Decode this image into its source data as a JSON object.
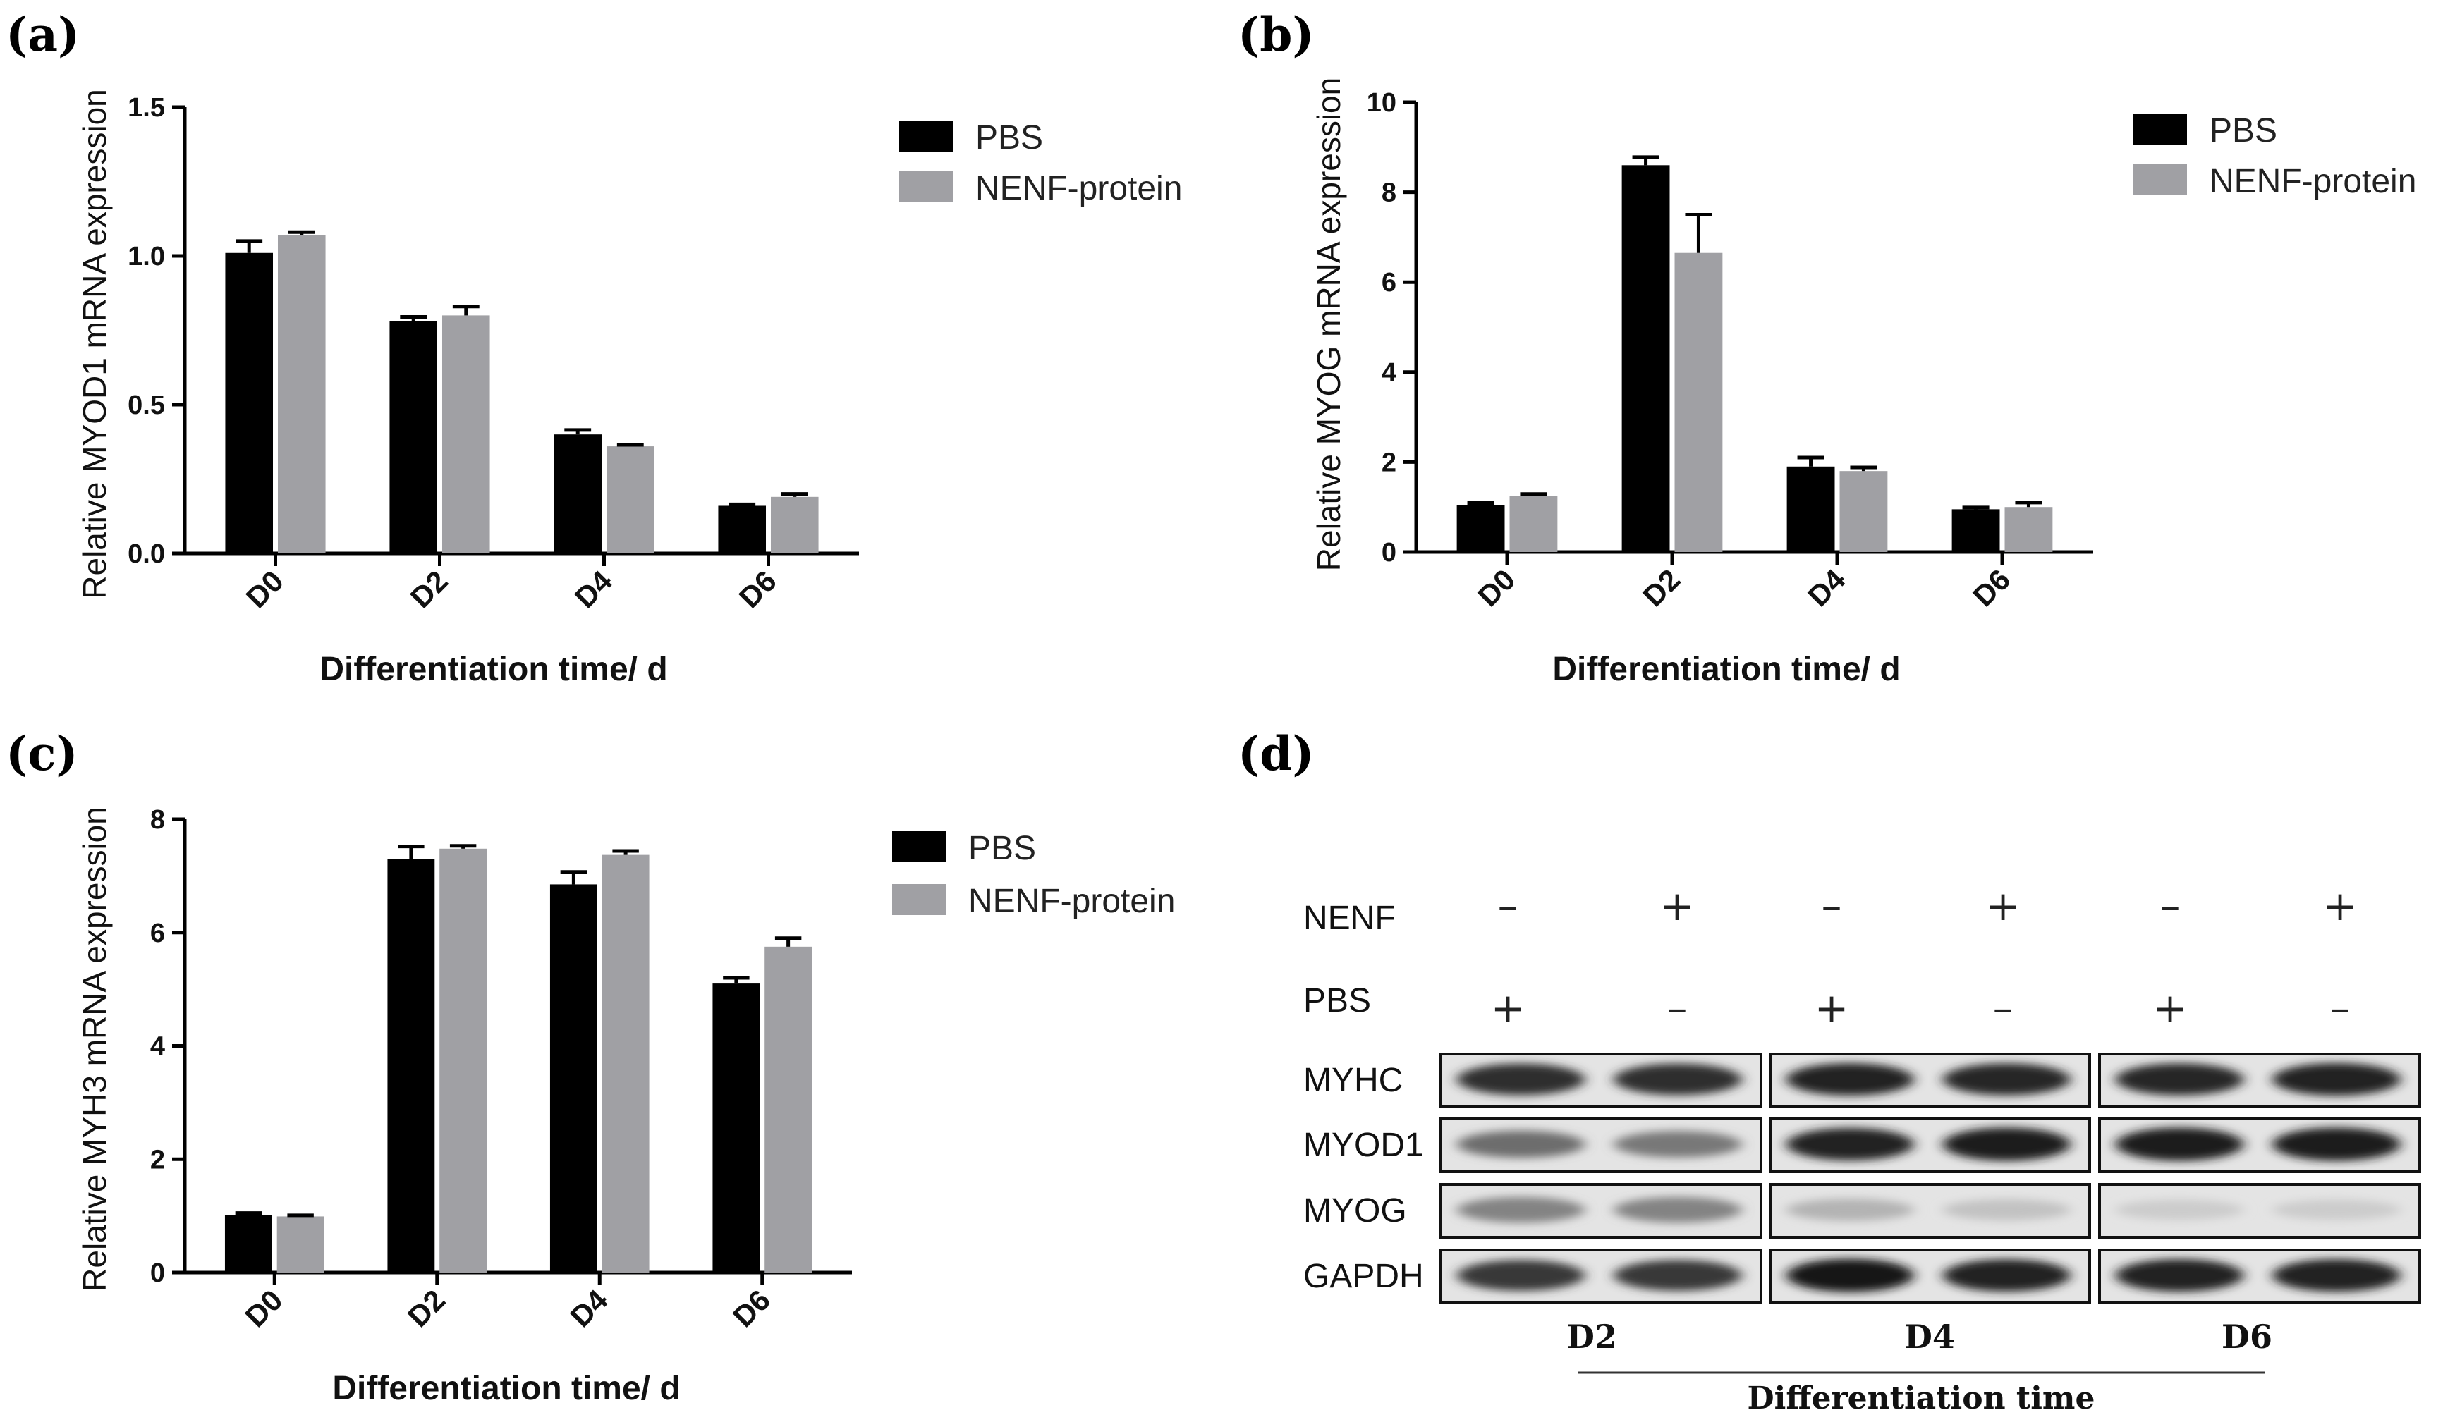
{
  "chart_data": [
    {
      "id": "a",
      "panel_label": "(a)",
      "type": "bar",
      "title": "",
      "ylabel": "Relative MYOD1 mRNA expression",
      "xlabel": "Differentiation time/ d",
      "categories": [
        "D0",
        "D2",
        "D4",
        "D6"
      ],
      "ylim": [
        0,
        1.5
      ],
      "yticks": [
        0.0,
        0.5,
        1.0,
        1.5
      ],
      "ytick_labels": [
        "0.0",
        "0.5",
        "1.0",
        "1.5"
      ],
      "legend": "top-right",
      "series": [
        {
          "name": "PBS",
          "color": "#000000",
          "values": [
            1.01,
            0.78,
            0.4,
            0.16
          ],
          "errors": [
            0.04,
            0.015,
            0.015,
            0.005
          ]
        },
        {
          "name": "NENF-protein",
          "color": "#a0a0a4",
          "values": [
            1.07,
            0.8,
            0.36,
            0.19
          ],
          "errors": [
            0.01,
            0.03,
            0.005,
            0.01
          ]
        }
      ]
    },
    {
      "id": "b",
      "panel_label": "(b)",
      "type": "bar",
      "title": "",
      "ylabel": "Relative MYOG mRNA expression",
      "xlabel": "Differentiation time/ d",
      "categories": [
        "D0",
        "D2",
        "D4",
        "D6"
      ],
      "ylim": [
        0,
        10
      ],
      "yticks": [
        0,
        2,
        4,
        6,
        8,
        10
      ],
      "ytick_labels": [
        "0",
        "2",
        "4",
        "6",
        "8",
        "10"
      ],
      "legend": "top-right",
      "series": [
        {
          "name": "PBS",
          "color": "#000000",
          "values": [
            1.05,
            8.6,
            1.9,
            0.95
          ],
          "errors": [
            0.04,
            0.18,
            0.2,
            0.04
          ]
        },
        {
          "name": "NENF-protein",
          "color": "#a0a0a4",
          "values": [
            1.25,
            6.65,
            1.8,
            1.0
          ],
          "errors": [
            0.04,
            0.85,
            0.08,
            0.1
          ]
        }
      ]
    },
    {
      "id": "c",
      "panel_label": "(c)",
      "type": "bar",
      "title": "",
      "ylabel": "Relative MYH3 mRNA expression",
      "xlabel": "Differentiation time/ d",
      "categories": [
        "D0",
        "D2",
        "D4",
        "D6"
      ],
      "ylim": [
        0,
        8
      ],
      "yticks": [
        0,
        2,
        4,
        6,
        8
      ],
      "ytick_labels": [
        "0",
        "2",
        "4",
        "6",
        "8"
      ],
      "legend": "top-right",
      "series": [
        {
          "name": "PBS",
          "color": "#000000",
          "values": [
            1.02,
            7.3,
            6.85,
            5.1
          ],
          "errors": [
            0.03,
            0.22,
            0.22,
            0.1
          ]
        },
        {
          "name": "NENF-protein",
          "color": "#a0a0a4",
          "values": [
            0.99,
            7.48,
            7.37,
            5.75
          ],
          "errors": [
            0.02,
            0.05,
            0.07,
            0.15
          ]
        }
      ]
    }
  ],
  "western_blot": {
    "panel_label": "(d)",
    "row_labels": {
      "nenf": "NENF",
      "pbs": "PBS"
    },
    "nenf_signs": [
      "–",
      "+",
      "–",
      "+",
      "–",
      "+"
    ],
    "pbs_signs": [
      "+",
      "–",
      "+",
      "–",
      "+",
      "–"
    ],
    "proteins": [
      "MYHC",
      "MYOD1",
      "MYOG",
      "GAPDH"
    ],
    "days": [
      "D2",
      "D4",
      "D6"
    ],
    "xlabel": "Differentiation time",
    "band_intensity": [
      [
        0.85,
        0.85,
        0.9,
        0.88,
        0.88,
        0.92
      ],
      [
        0.55,
        0.5,
        0.9,
        0.95,
        0.95,
        0.95
      ],
      [
        0.45,
        0.45,
        0.22,
        0.15,
        0.1,
        0.1
      ],
      [
        0.8,
        0.8,
        0.97,
        0.9,
        0.92,
        0.92
      ]
    ]
  }
}
